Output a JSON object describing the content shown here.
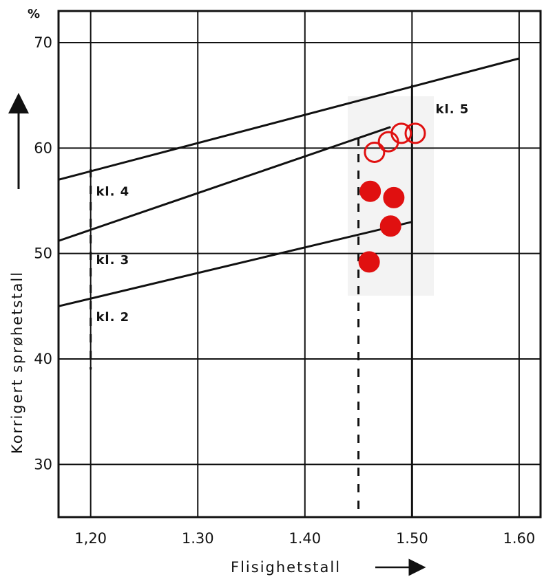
{
  "chart_data": {
    "type": "scatter",
    "title": "",
    "xlabel": "Flisighetstall",
    "ylabel": "Korrigert sprøhetstall",
    "y_unit": "%",
    "xlim": [
      1.17,
      1.62
    ],
    "ylim": [
      25,
      73
    ],
    "x_ticks": [
      {
        "value": 1.2,
        "label": "1,20"
      },
      {
        "value": 1.3,
        "label": "1.30"
      },
      {
        "value": 1.4,
        "label": "1.40"
      },
      {
        "value": 1.5,
        "label": "1.50"
      },
      {
        "value": 1.6,
        "label": "1.60"
      }
    ],
    "y_ticks": [
      {
        "value": 30,
        "label": "30"
      },
      {
        "value": 40,
        "label": "40"
      },
      {
        "value": 50,
        "label": "50"
      },
      {
        "value": 60,
        "label": "60"
      },
      {
        "value": 70,
        "label": "70"
      }
    ],
    "grid": true,
    "class_lines": [
      {
        "label": "kl. 4",
        "from": [
          1.17,
          57.0
        ],
        "to": [
          1.6,
          68.5
        ]
      },
      {
        "label": "kl. 3",
        "from": [
          1.17,
          51.2
        ],
        "to": [
          1.48,
          62.0
        ]
      },
      {
        "label": "kl. 2",
        "from": [
          1.17,
          45.0
        ],
        "to": [
          1.5,
          53.0
        ]
      }
    ],
    "class_labels": [
      {
        "text": "kl. 4",
        "x": 1.205,
        "y": 55.5
      },
      {
        "text": "kl. 3",
        "x": 1.205,
        "y": 49.0
      },
      {
        "text": "kl. 2",
        "x": 1.205,
        "y": 43.6
      },
      {
        "text": "kl. 5",
        "x": 1.522,
        "y": 63.3
      }
    ],
    "reference_lines": [
      {
        "x": 1.2,
        "style": "dashed",
        "y_range": [
          39,
          58
        ]
      },
      {
        "x": 1.45,
        "style": "dashed",
        "y_range": [
          25,
          61
        ]
      },
      {
        "x": 1.5,
        "style": "solid",
        "y_range": [
          25,
          66
        ]
      }
    ],
    "series": [
      {
        "marker": "open-circle",
        "color": "#e01010",
        "points": [
          [
            1.465,
            59.6
          ],
          [
            1.478,
            60.6
          ],
          [
            1.49,
            61.4
          ],
          [
            1.503,
            61.4
          ]
        ]
      },
      {
        "marker": "filled-circle",
        "color": "#e01010",
        "points": [
          [
            1.461,
            55.9
          ],
          [
            1.483,
            55.3
          ],
          [
            1.48,
            52.6
          ],
          [
            1.46,
            49.2
          ]
        ]
      }
    ]
  }
}
